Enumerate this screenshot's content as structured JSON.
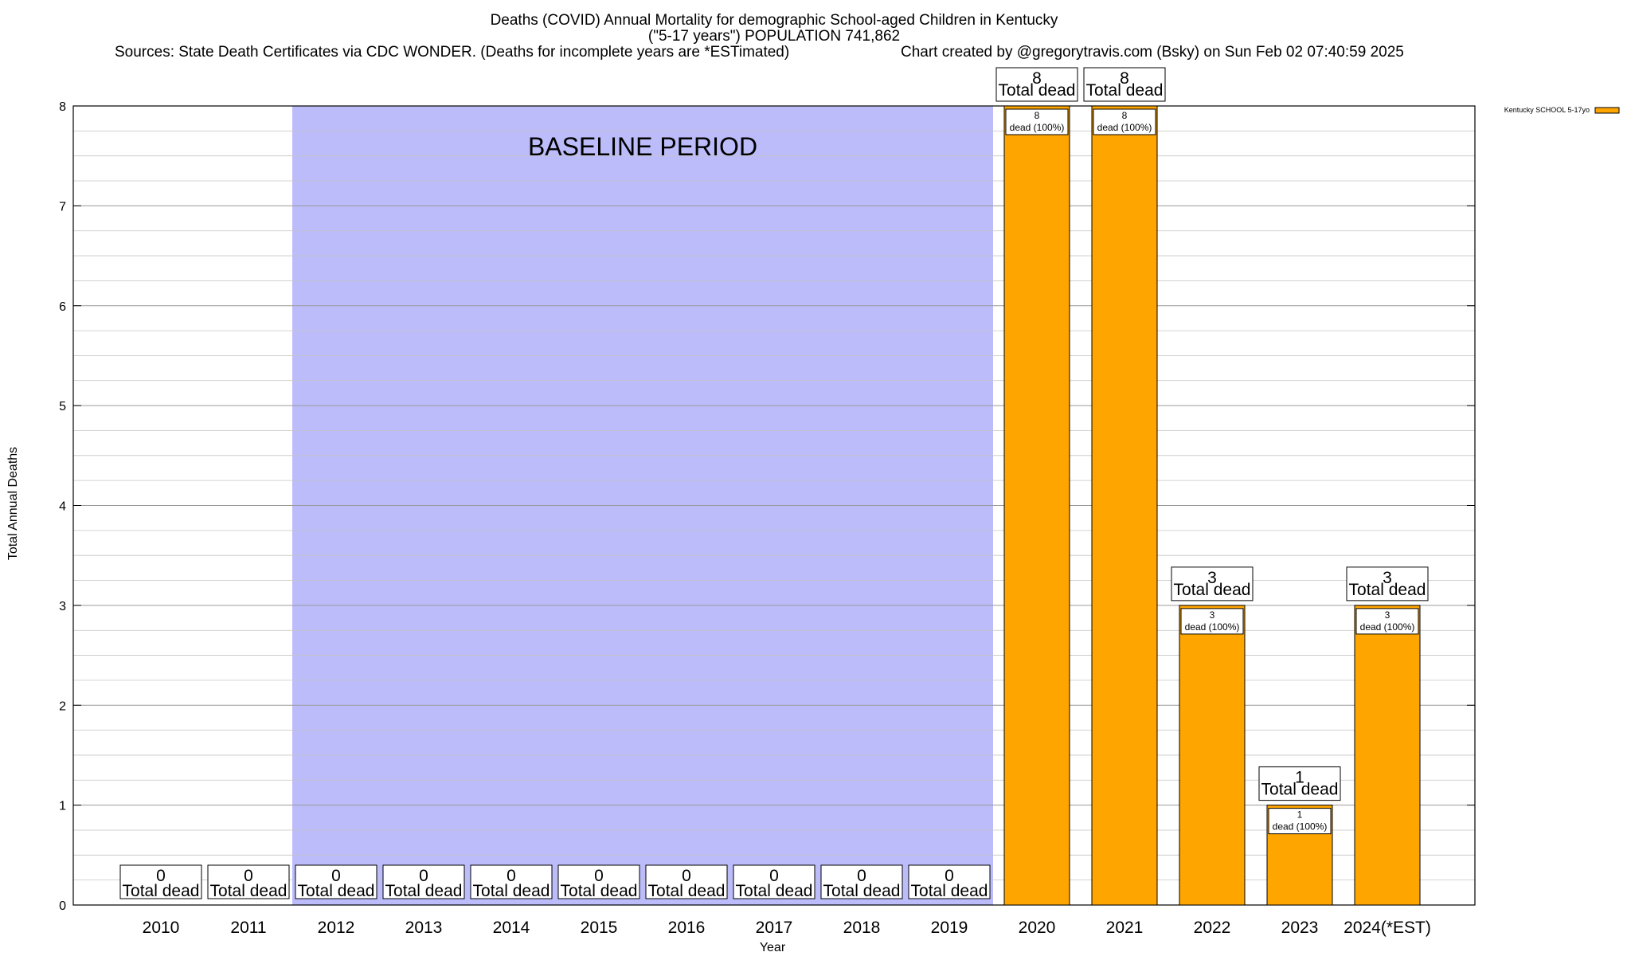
{
  "chart_data": {
    "type": "bar",
    "title_line1": "Deaths (COVID) Annual Mortality for demographic School-aged Children in Kentucky",
    "title_line2": "(\"5-17 years\") POPULATION 741,862",
    "sources": "Sources: State Death Certificates via CDC WONDER. (Deaths for incomplete years are *ESTimated)",
    "credit": "Chart created by @gregorytravis.com (Bsky) on Sun Feb 02 07:40:59 2025",
    "xlabel": "Year",
    "ylabel": "Total Annual Deaths",
    "ylim": [
      0,
      8
    ],
    "yticks": [
      "0",
      "1",
      "2",
      "3",
      "4",
      "5",
      "6",
      "7",
      "8"
    ],
    "categories": [
      "2010",
      "2011",
      "2012",
      "2013",
      "2014",
      "2015",
      "2016",
      "2017",
      "2018",
      "2019",
      "2020",
      "2021",
      "2022",
      "2023",
      "2024(*EST)"
    ],
    "series": [
      {
        "name": "Kentucky SCHOOL 5-17yo",
        "values": [
          0,
          0,
          0,
          0,
          0,
          0,
          0,
          0,
          0,
          0,
          8,
          8,
          3,
          1,
          3
        ]
      }
    ],
    "total_label": "Total dead",
    "inner_label": "dead (100%)",
    "baseline_period": {
      "label": "BASELINE PERIOD",
      "start": "2012",
      "end": "2019"
    },
    "legend": {
      "position": "top-right",
      "entries": [
        "Kentucky SCHOOL 5-17yo"
      ]
    },
    "colors": {
      "bar": "#ffa500",
      "baseline": "#bcbcfb",
      "grid": "#b0b0b0"
    }
  }
}
